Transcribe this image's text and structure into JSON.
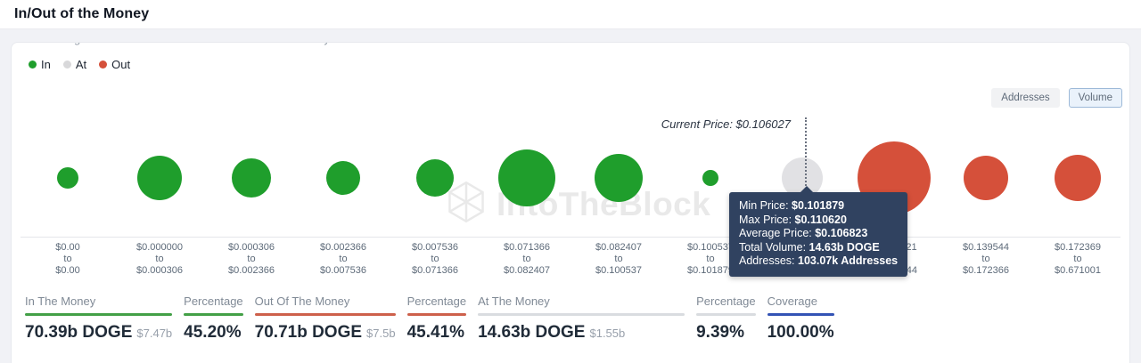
{
  "header": {
    "title": "In/Out of the Money",
    "subtitle_partial": "Price ranges in which addresses are in or out of the money"
  },
  "legend": {
    "items": [
      {
        "label": "In",
        "color": "#1f9e2c"
      },
      {
        "label": "At",
        "color": "#d8d8da"
      },
      {
        "label": "Out",
        "color": "#d5503a"
      }
    ]
  },
  "toggle": {
    "addresses_label": "Addresses",
    "volume_label": "Volume",
    "selected": "Volume"
  },
  "watermark": {
    "text": "IntoTheBlock"
  },
  "current_price": {
    "label": "Current Price: $0.106027"
  },
  "tooltip": {
    "rows": [
      {
        "label": "Min Price: ",
        "value": "$0.101879"
      },
      {
        "label": "Max Price: ",
        "value": "$0.110620"
      },
      {
        "label": "Average Price: ",
        "value": "$0.106823"
      },
      {
        "label": "Total Volume: ",
        "value": "14.63b DOGE"
      },
      {
        "label": "Addresses: ",
        "value": "103.07k Addresses"
      }
    ]
  },
  "chart_data": {
    "type": "bubble",
    "x_axis": "price range (USD)",
    "to_word": "to",
    "current_price": "$0.106027",
    "colors": {
      "in": "#1f9e2c",
      "at": "#e1e1e4",
      "out": "#d5503a"
    },
    "buckets": [
      {
        "from": "$0.00",
        "to": "$0.00",
        "status": "in",
        "diameter": 24
      },
      {
        "from": "$0.000000",
        "to": "$0.000306",
        "status": "in",
        "diameter": 50
      },
      {
        "from": "$0.000306",
        "to": "$0.002366",
        "status": "in",
        "diameter": 44
      },
      {
        "from": "$0.002366",
        "to": "$0.007536",
        "status": "in",
        "diameter": 38
      },
      {
        "from": "$0.007536",
        "to": "$0.071366",
        "status": "in",
        "diameter": 42
      },
      {
        "from": "$0.071366",
        "to": "$0.082407",
        "status": "in",
        "diameter": 64
      },
      {
        "from": "$0.082407",
        "to": "$0.100537",
        "status": "in",
        "diameter": 54
      },
      {
        "from": "$0.100537",
        "to": "$0.101879",
        "status": "in",
        "diameter": 18
      },
      {
        "from": "$0.101879",
        "to": "$0.110620",
        "status": "at",
        "diameter": 46
      },
      {
        "from": "$0.110621",
        "to": "$0.139544",
        "status": "out",
        "diameter": 82
      },
      {
        "from": "$0.139544",
        "to": "$0.172366",
        "status": "out",
        "diameter": 50
      },
      {
        "from": "$0.172369",
        "to": "$0.671001",
        "status": "out",
        "diameter": 52
      }
    ],
    "selected_bucket": {
      "range": "$0.101879 to $0.110620",
      "min_price": "$0.101879",
      "max_price": "$0.110620",
      "average_price": "$0.106823",
      "total_volume": "14.63b DOGE",
      "addresses": "103.07k Addresses"
    }
  },
  "stats": [
    {
      "label": "In The Money",
      "value": "70.39b DOGE",
      "sub": "$7.47b",
      "accent": "#43a047"
    },
    {
      "label": "Percentage",
      "value": "45.20%",
      "sub": "",
      "accent": "#43a047"
    },
    {
      "label": "Out Of The Money",
      "value": "70.71b DOGE",
      "sub": "$7.5b",
      "accent": "#cd604b"
    },
    {
      "label": "Percentage",
      "value": "45.41%",
      "sub": "",
      "accent": "#cd604b"
    },
    {
      "label": "At The Money",
      "value": "14.63b DOGE",
      "sub": "$1.55b",
      "accent": "#d9dce0"
    },
    {
      "label": "Percentage",
      "value": "9.39%",
      "sub": "",
      "accent": "#d9dce0"
    },
    {
      "label": "Coverage",
      "value": "100.00%",
      "sub": "",
      "accent": "#3353b5"
    }
  ]
}
